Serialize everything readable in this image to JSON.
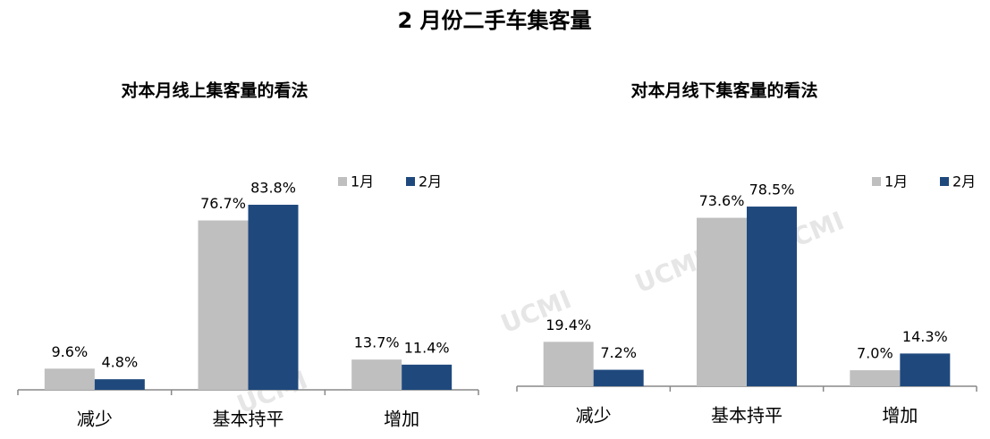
{
  "title": "2 月份二手车集客量",
  "watermark": "UCMI",
  "chart_data": [
    {
      "type": "bar",
      "title": "对本月线上集客量的看法",
      "categories": [
        "减少",
        "基本持平",
        "增加"
      ],
      "series": [
        {
          "name": "1月",
          "color": "#bfbfbf",
          "values": [
            9.6,
            76.7,
            13.7
          ],
          "value_labels": [
            "9.6%",
            "76.7%",
            "13.7%"
          ]
        },
        {
          "name": "2月",
          "color": "#1f497d",
          "values": [
            4.8,
            83.8,
            11.4
          ],
          "value_labels": [
            "4.8%",
            "83.8%",
            "11.4%"
          ]
        }
      ]
    },
    {
      "type": "bar",
      "title": "对本月线下集客量的看法",
      "categories": [
        "减少",
        "基本持平",
        "增加"
      ],
      "series": [
        {
          "name": "1月",
          "color": "#bfbfbf",
          "values": [
            19.4,
            73.6,
            7.0
          ],
          "value_labels": [
            "19.4%",
            "73.6%",
            "7.0%"
          ]
        },
        {
          "name": "2月",
          "color": "#1f497d",
          "values": [
            7.2,
            78.5,
            14.3
          ],
          "value_labels": [
            "7.2%",
            "78.5%",
            "14.3%"
          ]
        }
      ]
    }
  ]
}
